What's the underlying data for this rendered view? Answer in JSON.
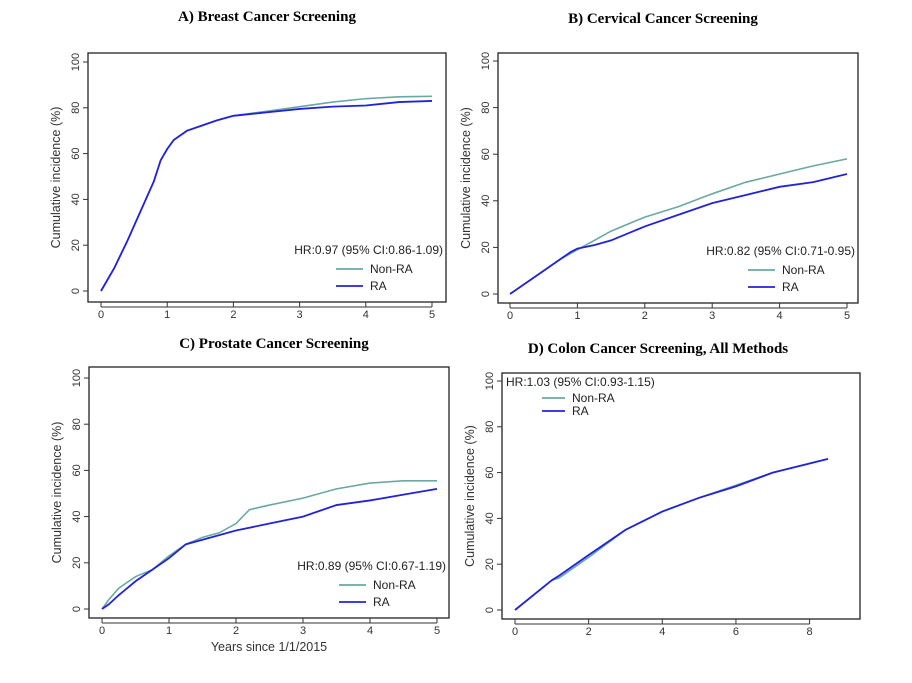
{
  "colors": {
    "non_ra": "#6aa9a1",
    "ra": "#2222dd"
  },
  "chart_data": [
    {
      "type": "line",
      "title": "A)  Breast Cancer Screening",
      "xlabel": "",
      "ylabel": "Cumulative incidence (%)",
      "xlim": [
        0,
        5
      ],
      "ylim": [
        0,
        100
      ],
      "xticks": [
        "0",
        "1",
        "2",
        "3",
        "4",
        "5"
      ],
      "yticks": [
        "0",
        "20",
        "40",
        "60",
        "80",
        "100"
      ],
      "annotation": "HR:0.97 (95% CI:0.86-1.09)",
      "legend_position": "bottom-right",
      "series": [
        {
          "name": "Non-RA",
          "x": [
            0,
            0.2,
            0.4,
            0.6,
            0.8,
            0.9,
            1,
            1.1,
            1.3,
            1.5,
            1.75,
            2,
            2.5,
            3,
            3.5,
            4,
            4.5,
            5
          ],
          "y": [
            0,
            10,
            22,
            35,
            48,
            57,
            62,
            66,
            70,
            72,
            74.5,
            76.5,
            78.5,
            80.5,
            82.5,
            84,
            84.8,
            85
          ]
        },
        {
          "name": "RA",
          "x": [
            0,
            0.2,
            0.4,
            0.6,
            0.8,
            0.9,
            1,
            1.1,
            1.3,
            1.5,
            1.75,
            2,
            2.5,
            3,
            3.5,
            4,
            4.5,
            5
          ],
          "y": [
            0,
            10,
            22,
            35,
            48,
            57,
            62,
            66,
            70,
            72,
            74.5,
            76.5,
            78,
            79.5,
            80.5,
            81,
            82.5,
            83
          ]
        }
      ]
    },
    {
      "type": "line",
      "title": "B) Cervical Cancer Screening",
      "xlabel": "",
      "ylabel": "Cumulative incidence (%)",
      "xlim": [
        0,
        5
      ],
      "ylim": [
        0,
        100
      ],
      "xticks": [
        "0",
        "1",
        "2",
        "3",
        "4",
        "5"
      ],
      "yticks": [
        "0",
        "20",
        "40",
        "60",
        "80",
        "100"
      ],
      "annotation": "HR:0.82 (95% CI:0.71-0.95)",
      "legend_position": "bottom-right",
      "series": [
        {
          "name": "Non-RA",
          "x": [
            0,
            0.25,
            0.5,
            0.75,
            1,
            1.25,
            1.5,
            2,
            2.5,
            3,
            3.5,
            4,
            4.5,
            5
          ],
          "y": [
            0,
            5,
            10,
            15,
            19,
            23,
            27,
            33,
            37.5,
            43,
            48,
            51.5,
            55,
            58
          ]
        },
        {
          "name": "RA",
          "x": [
            0,
            0.25,
            0.5,
            0.75,
            0.9,
            1,
            1.25,
            1.5,
            2,
            2.5,
            3,
            3.5,
            4,
            4.5,
            5
          ],
          "y": [
            0,
            5,
            10,
            15,
            18,
            19.5,
            21,
            23,
            29,
            34,
            39,
            42.5,
            46,
            48,
            51.5
          ]
        }
      ]
    },
    {
      "type": "line",
      "title": "C) Prostate Cancer Screening",
      "xlabel": "Years since 1/1/2015",
      "ylabel": "Cumulative incidence (%)",
      "xlim": [
        0,
        5
      ],
      "ylim": [
        0,
        100
      ],
      "xticks": [
        "0",
        "1",
        "2",
        "3",
        "4",
        "5"
      ],
      "yticks": [
        "0",
        "20",
        "40",
        "60",
        "80",
        "100"
      ],
      "annotation": "HR:0.89 (95% CI:0.67-1.19)",
      "legend_position": "bottom-right",
      "series": [
        {
          "name": "Non-RA",
          "x": [
            0,
            0.1,
            0.25,
            0.5,
            0.75,
            1,
            1.25,
            1.5,
            1.75,
            2,
            2.2,
            2.5,
            3,
            3.5,
            4,
            4.5,
            5
          ],
          "y": [
            0,
            4,
            9,
            14,
            17,
            23,
            28,
            31,
            33,
            37,
            43,
            45,
            48,
            52,
            54.5,
            55.5,
            55.5
          ]
        },
        {
          "name": "RA",
          "x": [
            0,
            0.1,
            0.25,
            0.5,
            0.75,
            1,
            1.25,
            1.5,
            2,
            2.5,
            3,
            3.5,
            4,
            4.5,
            5
          ],
          "y": [
            0,
            2,
            6,
            12,
            17,
            22,
            28,
            30,
            34,
            37,
            40,
            45,
            47,
            49.5,
            52
          ]
        }
      ]
    },
    {
      "type": "line",
      "title": "D) Colon Cancer Screening, All Methods",
      "xlabel": "",
      "ylabel": "Cumulative incidence (%)",
      "xlim": [
        0,
        8.5
      ],
      "ylim": [
        0,
        100
      ],
      "xticks": [
        "0",
        "2",
        "4",
        "6",
        "8"
      ],
      "yticks": [
        "0",
        "20",
        "40",
        "60",
        "80",
        "100"
      ],
      "annotation": "HR:1.03 (95% CI:0.93-1.15)",
      "legend_position": "top-left",
      "series": [
        {
          "name": "Non-RA",
          "x": [
            0,
            1,
            1.2,
            2,
            3,
            4,
            5,
            6,
            7,
            8,
            8.5
          ],
          "y": [
            0,
            13,
            14,
            23,
            35,
            43,
            49,
            54.5,
            60,
            64,
            66
          ]
        },
        {
          "name": "RA",
          "x": [
            0,
            1,
            1.2,
            2,
            3,
            4,
            5,
            6,
            7,
            8,
            8.5
          ],
          "y": [
            0,
            13,
            15,
            24,
            35,
            43,
            49,
            54,
            60,
            64,
            66
          ]
        }
      ]
    }
  ]
}
